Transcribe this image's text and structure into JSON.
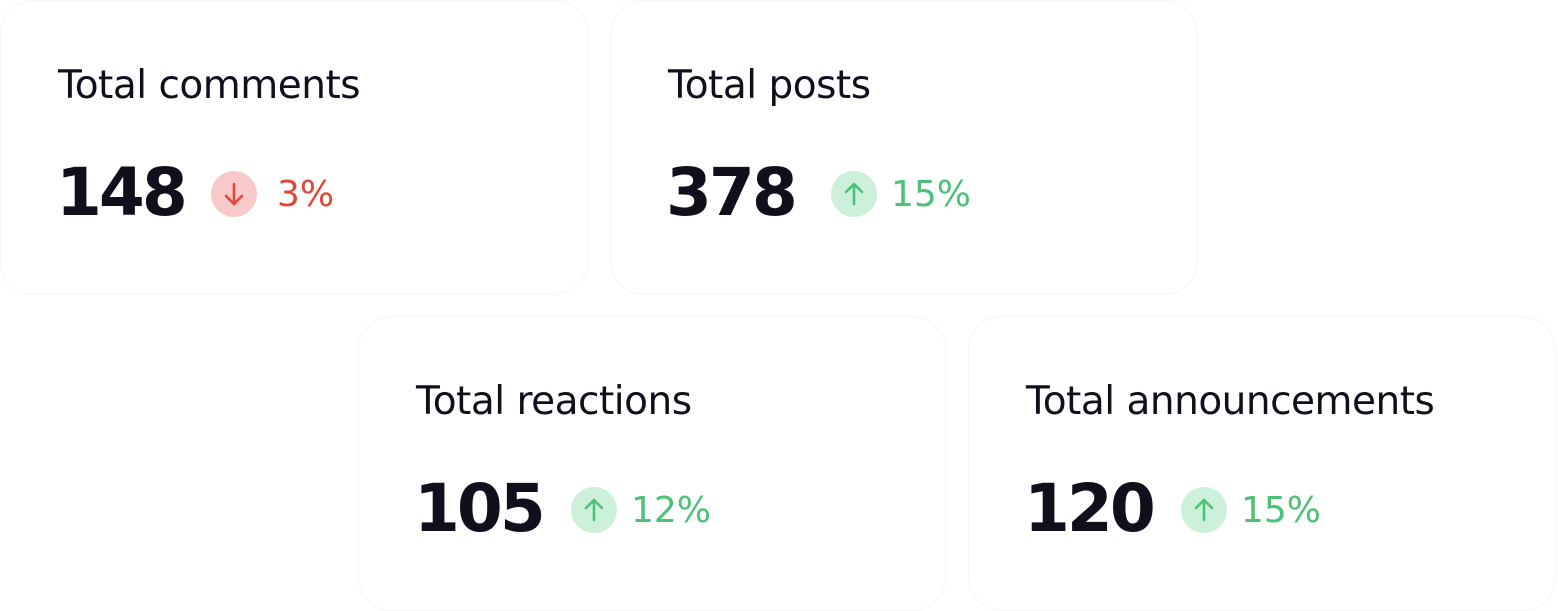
{
  "cards": [
    {
      "title": "Total comments",
      "value": "148",
      "change": "3%",
      "direction": "down"
    },
    {
      "title": "Total posts",
      "value": "378",
      "change": "15%",
      "direction": "up"
    },
    {
      "title": "Total reactions",
      "value": "105",
      "change": "12%",
      "direction": "up"
    },
    {
      "title": "Total announcements",
      "value": "120",
      "change": "15%",
      "direction": "up"
    }
  ]
}
